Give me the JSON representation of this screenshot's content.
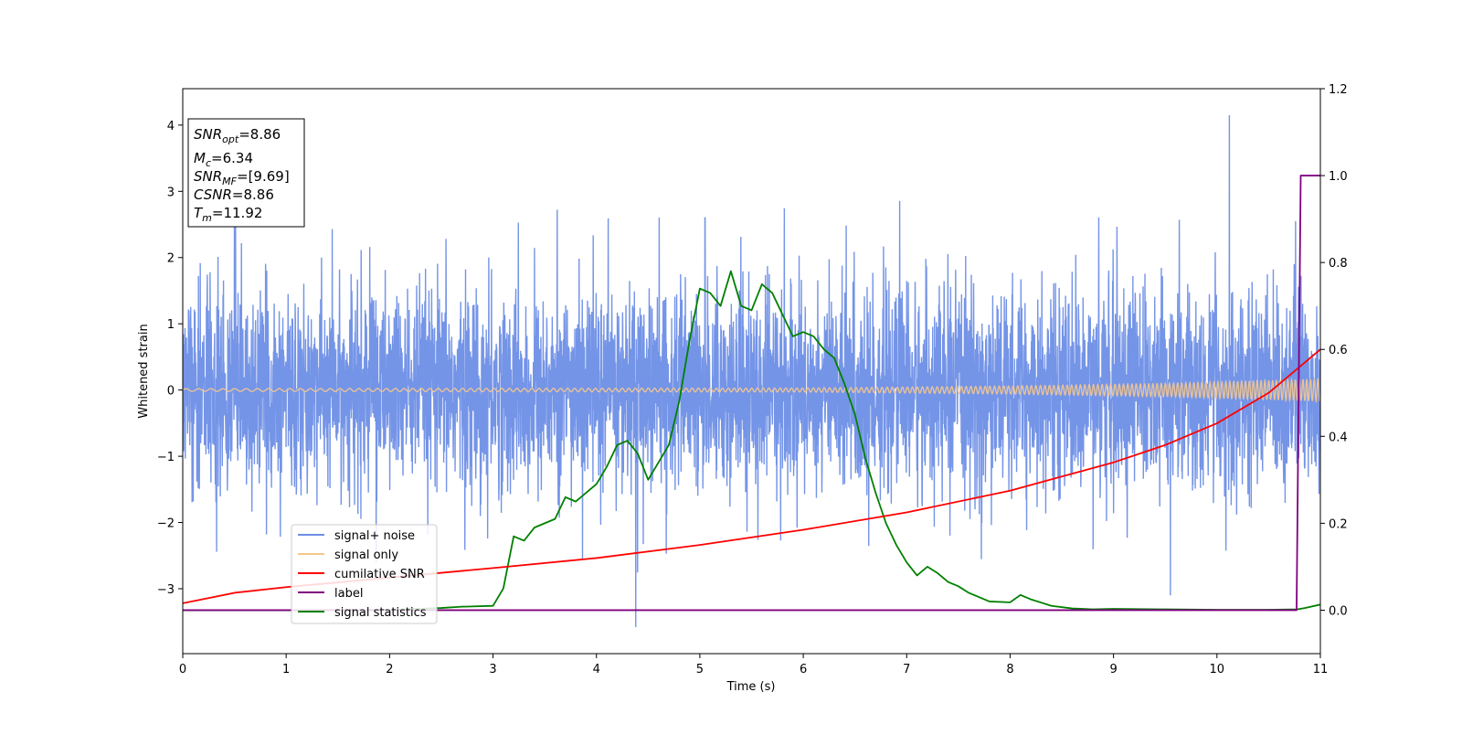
{
  "chart_data": {
    "type": "line",
    "xlabel": "Time (s)",
    "ylabel": "Whitened strain",
    "xlim": [
      0,
      11
    ],
    "ylim_left": [
      -3.98,
      4.55
    ],
    "ylim_right": [
      -0.1,
      1.2
    ],
    "grid": false,
    "x_ticks": [
      "0",
      "1",
      "2",
      "3",
      "4",
      "5",
      "6",
      "7",
      "8",
      "9",
      "10",
      "11"
    ],
    "y_ticks_left": [
      "−3",
      "−2",
      "−1",
      "0",
      "1",
      "2",
      "3",
      "4"
    ],
    "y_ticks_right": [
      "0.0",
      "0.2",
      "0.4",
      "0.6",
      "0.8",
      "1.0",
      "1.2"
    ],
    "legend_position": "lower-left",
    "legend": [
      {
        "label": "signal+ noise",
        "color": "#6d8ee6"
      },
      {
        "label": "signal only",
        "color": "#f5c78e"
      },
      {
        "label": "cumilative SNR",
        "color": "#ff0000"
      },
      {
        "label": "label",
        "color": "#800080"
      },
      {
        "label": "signal statistics",
        "color": "#008000"
      }
    ],
    "info_box": {
      "snr_opt": {
        "symbol": "SNR",
        "sub": "opt",
        "value": "=8.86"
      },
      "mc": {
        "symbol": "M",
        "sub": "c",
        "value": "=6.34"
      },
      "snr_mf": {
        "symbol": "SNR",
        "sub": "MF",
        "value": "=[9.69]"
      },
      "csnr": {
        "symbol": "CSNR",
        "sub": "",
        "value": "=8.86"
      },
      "tm": {
        "symbol": "T",
        "sub": "m",
        "value": "=11.92"
      }
    },
    "series": [
      {
        "name": "signal+ noise",
        "axis": "left",
        "color": "#6d8ee6",
        "noise_band": [
          -1.6,
          1.6
        ],
        "peaks": [
          [
            0.5,
            2.6
          ],
          [
            4.38,
            -3.58
          ],
          [
            5.05,
            2.6
          ],
          [
            9.55,
            -3.1
          ],
          [
            10.12,
            4.15
          ],
          [
            10.76,
            2.55
          ]
        ]
      },
      {
        "name": "signal only",
        "axis": "left",
        "color": "#f5c78e",
        "amplitude": [
          [
            0,
            0.02
          ],
          [
            6,
            0.03
          ],
          [
            8,
            0.06
          ],
          [
            9.5,
            0.1
          ],
          [
            11,
            0.17
          ]
        ]
      },
      {
        "name": "cumilative SNR",
        "axis": "right",
        "color": "#ff0000",
        "x": [
          0,
          0.5,
          1,
          2,
          3,
          4,
          5,
          6,
          7,
          8,
          9,
          9.5,
          10,
          10.5,
          11
        ],
        "y": [
          0.016,
          0.04,
          0.053,
          0.075,
          0.097,
          0.12,
          0.15,
          0.185,
          0.225,
          0.275,
          0.34,
          0.38,
          0.43,
          0.5,
          0.6
        ]
      },
      {
        "name": "label",
        "axis": "right",
        "color": "#800080",
        "x": [
          0,
          10.77,
          10.81,
          11
        ],
        "y": [
          0.0,
          0.0,
          1.0,
          1.0
        ]
      },
      {
        "name": "signal statistics",
        "axis": "right",
        "color": "#008000",
        "x": [
          0,
          1,
          2,
          2.5,
          2.7,
          3.0,
          3.1,
          3.2,
          3.3,
          3.4,
          3.5,
          3.6,
          3.7,
          3.8,
          3.9,
          4.0,
          4.1,
          4.2,
          4.3,
          4.4,
          4.5,
          4.6,
          4.7,
          4.8,
          4.9,
          5.0,
          5.1,
          5.2,
          5.3,
          5.4,
          5.5,
          5.6,
          5.7,
          5.8,
          5.9,
          6.0,
          6.1,
          6.2,
          6.3,
          6.4,
          6.5,
          6.6,
          6.7,
          6.8,
          6.9,
          7.0,
          7.1,
          7.2,
          7.3,
          7.4,
          7.5,
          7.6,
          7.8,
          8.0,
          8.1,
          8.2,
          8.4,
          8.6,
          8.8,
          9.0,
          9.5,
          10.0,
          10.5,
          10.78,
          10.85,
          11.0
        ],
        "y": [
          0.0,
          0.0,
          0.001,
          0.005,
          0.008,
          0.01,
          0.05,
          0.17,
          0.16,
          0.19,
          0.2,
          0.21,
          0.26,
          0.25,
          0.27,
          0.29,
          0.33,
          0.38,
          0.39,
          0.36,
          0.3,
          0.34,
          0.38,
          0.48,
          0.62,
          0.74,
          0.73,
          0.7,
          0.78,
          0.7,
          0.69,
          0.75,
          0.73,
          0.68,
          0.63,
          0.64,
          0.63,
          0.6,
          0.58,
          0.52,
          0.45,
          0.35,
          0.27,
          0.2,
          0.15,
          0.11,
          0.08,
          0.1,
          0.085,
          0.065,
          0.055,
          0.04,
          0.02,
          0.018,
          0.035,
          0.025,
          0.01,
          0.004,
          0.002,
          0.003,
          0.002,
          0.001,
          0.001,
          0.002,
          0.005,
          0.013
        ]
      }
    ]
  }
}
